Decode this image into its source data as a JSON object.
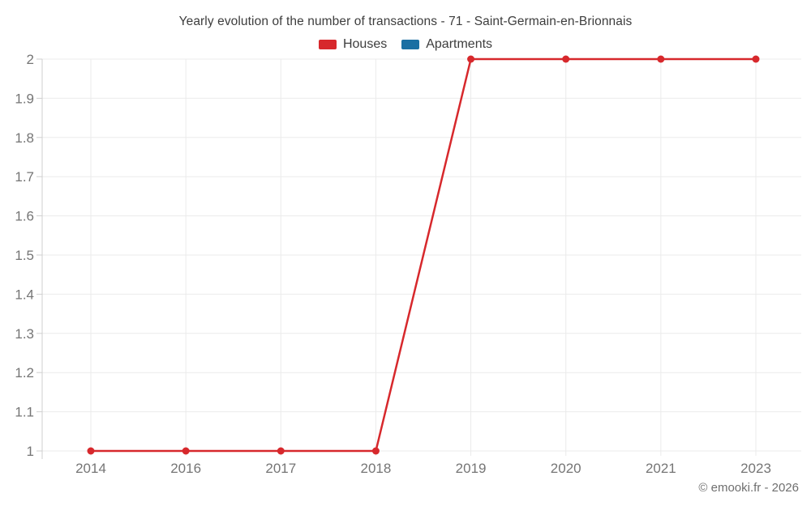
{
  "footer": {
    "credit": "© emooki.fr - 2026"
  },
  "colors": {
    "houses": "#d7282c",
    "apartments": "#1a6fa3",
    "grid": "#ebebeb",
    "axis": "#cfcfcf",
    "tick_label": "#757575",
    "title_text": "#3d3d3d"
  },
  "chart_data": {
    "type": "line",
    "title": "Yearly evolution of the number of transactions - 71 - Saint-Germain-en-Brionnais",
    "xlabel": "",
    "ylabel": "",
    "categories": [
      "2014",
      "2016",
      "2017",
      "2018",
      "2019",
      "2020",
      "2021",
      "2023"
    ],
    "series": [
      {
        "name": "Houses",
        "color": "#d7282c",
        "values": [
          1,
          1,
          1,
          1,
          2,
          2,
          2,
          2
        ]
      },
      {
        "name": "Apartments",
        "color": "#1a6fa3",
        "values": []
      }
    ],
    "ylim": [
      1,
      2
    ],
    "yticks": [
      {
        "value": 1,
        "label": "1"
      },
      {
        "value": 1.1,
        "label": "1.1"
      },
      {
        "value": 1.2,
        "label": "1.2"
      },
      {
        "value": 1.3,
        "label": "1.3"
      },
      {
        "value": 1.4,
        "label": "1.4"
      },
      {
        "value": 1.5,
        "label": "1.5"
      },
      {
        "value": 1.6,
        "label": "1.6"
      },
      {
        "value": 1.7,
        "label": "1.7"
      },
      {
        "value": 1.8,
        "label": "1.8"
      },
      {
        "value": 1.9,
        "label": "1.9"
      },
      {
        "value": 2,
        "label": "2"
      }
    ],
    "grid": true,
    "legend_position": "top"
  }
}
